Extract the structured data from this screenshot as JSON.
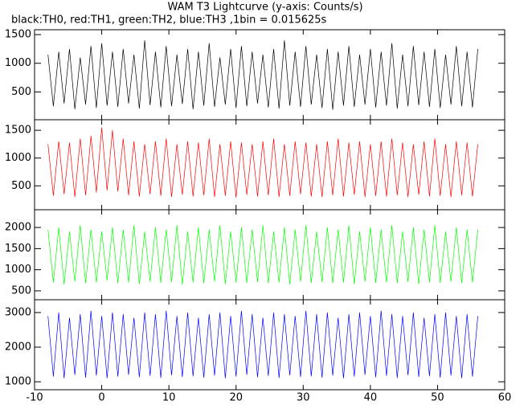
{
  "chart_data": [
    {
      "type": "line",
      "title": "WAM T3 Lightcurve (y-axis: Counts/s)",
      "subtitle": "black:TH0, red:TH1, green:TH2, blue:TH3 ,1bin = 0.015625s",
      "color": "#000000",
      "xlim": [
        -10,
        60
      ],
      "xticks": [
        -10,
        0,
        10,
        20,
        30,
        40,
        50,
        60
      ],
      "ylim": [
        15,
        1585
      ],
      "yticks": [
        500,
        1000,
        1500
      ],
      "x": [
        -8,
        -7.2,
        -6.4,
        -5.6,
        -4.8,
        -4,
        -3.2,
        -2.4,
        -1.6,
        -0.8,
        0,
        0.8,
        1.6,
        2.4,
        3.2,
        4,
        4.8,
        5.6,
        6.4,
        7.2,
        8,
        8.8,
        9.6,
        10.4,
        11.2,
        12,
        12.8,
        13.6,
        14.4,
        15.2,
        16,
        16.8,
        17.6,
        18.4,
        19.2,
        20,
        20.8,
        21.6,
        22.4,
        23.2,
        24,
        24.8,
        25.6,
        26.4,
        27.2,
        28,
        28.8,
        29.6,
        30.4,
        31.2,
        32,
        32.8,
        33.6,
        34.4,
        35.2,
        36,
        36.8,
        37.6,
        38.4,
        39.2,
        40,
        40.8,
        41.6,
        42.4,
        43.2,
        44,
        44.8,
        45.6,
        46.4,
        47.2,
        48,
        48.8,
        49.6,
        50.4,
        51.2,
        52,
        52.8,
        53.6,
        54.4,
        55.2,
        56
      ],
      "values": [
        1150,
        250,
        1200,
        300,
        1250,
        200,
        1100,
        280,
        1300,
        220,
        1350,
        260,
        1200,
        240,
        1250,
        300,
        1150,
        210,
        1400,
        270,
        1200,
        230,
        1300,
        250,
        1150,
        290,
        1250,
        200,
        1200,
        260,
        1350,
        240,
        1100,
        280,
        1250,
        220,
        1300,
        250,
        1200,
        300,
        1150,
        230,
        1250,
        210,
        1400,
        260,
        1200,
        240,
        1300,
        280,
        1150,
        220,
        1250,
        190,
        1200,
        260,
        1300,
        240,
        1150,
        280,
        1250,
        230,
        1200,
        260,
        1350,
        210,
        1150,
        250,
        1300,
        270,
        1200,
        240,
        1250,
        220,
        1150,
        280,
        1300,
        250,
        1200,
        230,
        1250
      ]
    },
    {
      "type": "line",
      "color": "#ff0000",
      "xlim": [
        -10,
        60
      ],
      "xticks": [
        -10,
        0,
        10,
        20,
        30,
        40,
        50,
        60
      ],
      "ylim": [
        70,
        1690
      ],
      "yticks": [
        500,
        1000,
        1500
      ],
      "x": [
        -8,
        -7.2,
        -6.4,
        -5.6,
        -4.8,
        -4,
        -3.2,
        -2.4,
        -1.6,
        -0.8,
        0,
        0.8,
        1.6,
        2.4,
        3.2,
        4,
        4.8,
        5.6,
        6.4,
        7.2,
        8,
        8.8,
        9.6,
        10.4,
        11.2,
        12,
        12.8,
        13.6,
        14.4,
        15.2,
        16,
        16.8,
        17.6,
        18.4,
        19.2,
        20,
        20.8,
        21.6,
        22.4,
        23.2,
        24,
        24.8,
        25.6,
        26.4,
        27.2,
        28,
        28.8,
        29.6,
        30.4,
        31.2,
        32,
        32.8,
        33.6,
        34.4,
        35.2,
        36,
        36.8,
        37.6,
        38.4,
        39.2,
        40,
        40.8,
        41.6,
        42.4,
        43.2,
        44,
        44.8,
        45.6,
        46.4,
        47.2,
        48,
        48.8,
        49.6,
        50.4,
        51.2,
        52,
        52.8,
        53.6,
        54.4,
        55.2,
        56
      ],
      "values": [
        1250,
        320,
        1300,
        350,
        1280,
        300,
        1350,
        330,
        1400,
        380,
        1550,
        420,
        1500,
        400,
        1350,
        330,
        1300,
        310,
        1250,
        350,
        1300,
        320,
        1350,
        300,
        1250,
        340,
        1300,
        310,
        1280,
        330,
        1350,
        300,
        1250,
        320,
        1300,
        290,
        1280,
        340,
        1250,
        310,
        1300,
        330,
        1350,
        300,
        1250,
        320,
        1300,
        350,
        1280,
        310,
        1250,
        300,
        1300,
        330,
        1350,
        310,
        1280,
        340,
        1300,
        300,
        1250,
        320,
        1300,
        310,
        1350,
        330,
        1280,
        300,
        1250,
        340,
        1300,
        310,
        1350,
        320,
        1250,
        300,
        1300,
        330,
        1280,
        310,
        1250
      ]
    },
    {
      "type": "line",
      "color": "#00ff00",
      "xlim": [
        -10,
        60
      ],
      "xticks": [
        -10,
        0,
        10,
        20,
        30,
        40,
        50,
        60
      ],
      "ylim": [
        290,
        2420
      ],
      "yticks": [
        500,
        1000,
        1500,
        2000
      ],
      "x": [
        -8,
        -7.2,
        -6.4,
        -5.6,
        -4.8,
        -4,
        -3.2,
        -2.4,
        -1.6,
        -0.8,
        0,
        0.8,
        1.6,
        2.4,
        3.2,
        4,
        4.8,
        5.6,
        6.4,
        7.2,
        8,
        8.8,
        9.6,
        10.4,
        11.2,
        12,
        12.8,
        13.6,
        14.4,
        15.2,
        16,
        16.8,
        17.6,
        18.4,
        19.2,
        20,
        20.8,
        21.6,
        22.4,
        23.2,
        24,
        24.8,
        25.6,
        26.4,
        27.2,
        28,
        28.8,
        29.6,
        30.4,
        31.2,
        32,
        32.8,
        33.6,
        34.4,
        35.2,
        36,
        36.8,
        37.6,
        38.4,
        39.2,
        40,
        40.8,
        41.6,
        42.4,
        43.2,
        44,
        44.8,
        45.6,
        46.4,
        47.2,
        48,
        48.8,
        49.6,
        50.4,
        51.2,
        52,
        52.8,
        53.6,
        54.4,
        55.2,
        56
      ],
      "values": [
        1950,
        700,
        2000,
        650,
        1900,
        720,
        2050,
        680,
        1950,
        700,
        1900,
        750,
        2000,
        680,
        1950,
        700,
        2050,
        660,
        1900,
        720,
        2000,
        690,
        1950,
        710,
        2050,
        650,
        1900,
        700,
        2000,
        680,
        1950,
        720,
        2050,
        660,
        1900,
        700,
        2000,
        690,
        1950,
        710,
        2050,
        680,
        1900,
        700,
        2000,
        650,
        1950,
        720,
        2050,
        690,
        1900,
        710,
        2000,
        680,
        1950,
        700,
        2050,
        660,
        1900,
        720,
        2000,
        690,
        1950,
        700,
        2050,
        680,
        1900,
        710,
        2000,
        660,
        1950,
        700,
        2050,
        690,
        1900,
        720,
        2000,
        680,
        1950,
        700,
        1950
      ]
    },
    {
      "type": "line",
      "color": "#0000ff",
      "xlim": [
        -10,
        60
      ],
      "xticks": [
        -10,
        0,
        10,
        20,
        30,
        40,
        50,
        60
      ],
      "ylim": [
        770,
        3370
      ],
      "yticks": [
        1000,
        2000,
        3000
      ],
      "x": [
        -8,
        -7.2,
        -6.4,
        -5.6,
        -4.8,
        -4,
        -3.2,
        -2.4,
        -1.6,
        -0.8,
        0,
        0.8,
        1.6,
        2.4,
        3.2,
        4,
        4.8,
        5.6,
        6.4,
        7.2,
        8,
        8.8,
        9.6,
        10.4,
        11.2,
        12,
        12.8,
        13.6,
        14.4,
        15.2,
        16,
        16.8,
        17.6,
        18.4,
        19.2,
        20,
        20.8,
        21.6,
        22.4,
        23.2,
        24,
        24.8,
        25.6,
        26.4,
        27.2,
        28,
        28.8,
        29.6,
        30.4,
        31.2,
        32,
        32.8,
        33.6,
        34.4,
        35.2,
        36,
        36.8,
        37.6,
        38.4,
        39.2,
        40,
        40.8,
        41.6,
        42.4,
        43.2,
        44,
        44.8,
        45.6,
        46.4,
        47.2,
        48,
        48.8,
        49.6,
        50.4,
        51.2,
        52,
        52.8,
        53.6,
        54.4,
        55.2,
        56
      ],
      "values": [
        2900,
        1150,
        3000,
        1100,
        2850,
        1200,
        2950,
        1120,
        3050,
        1180,
        2900,
        1100,
        3000,
        1150,
        2950,
        1200,
        2850,
        1130,
        3000,
        1170,
        2950,
        1110,
        3050,
        1190,
        2900,
        1140,
        3000,
        1160,
        2850,
        1120,
        2950,
        1180,
        3000,
        1100,
        2900,
        1150,
        3050,
        1200,
        2950,
        1130,
        2850,
        1170,
        3000,
        1110,
        2950,
        1190,
        2900,
        1140,
        3050,
        1160,
        2950,
        1120,
        3000,
        1180,
        2850,
        1100,
        2950,
        1150,
        3000,
        1200,
        2900,
        1130,
        3050,
        1170,
        2950,
        1110,
        2900,
        1190,
        3000,
        1140,
        2850,
        1160,
        2950,
        1120,
        3000,
        1180,
        2900,
        1100,
        2950,
        1150,
        2900
      ]
    }
  ]
}
